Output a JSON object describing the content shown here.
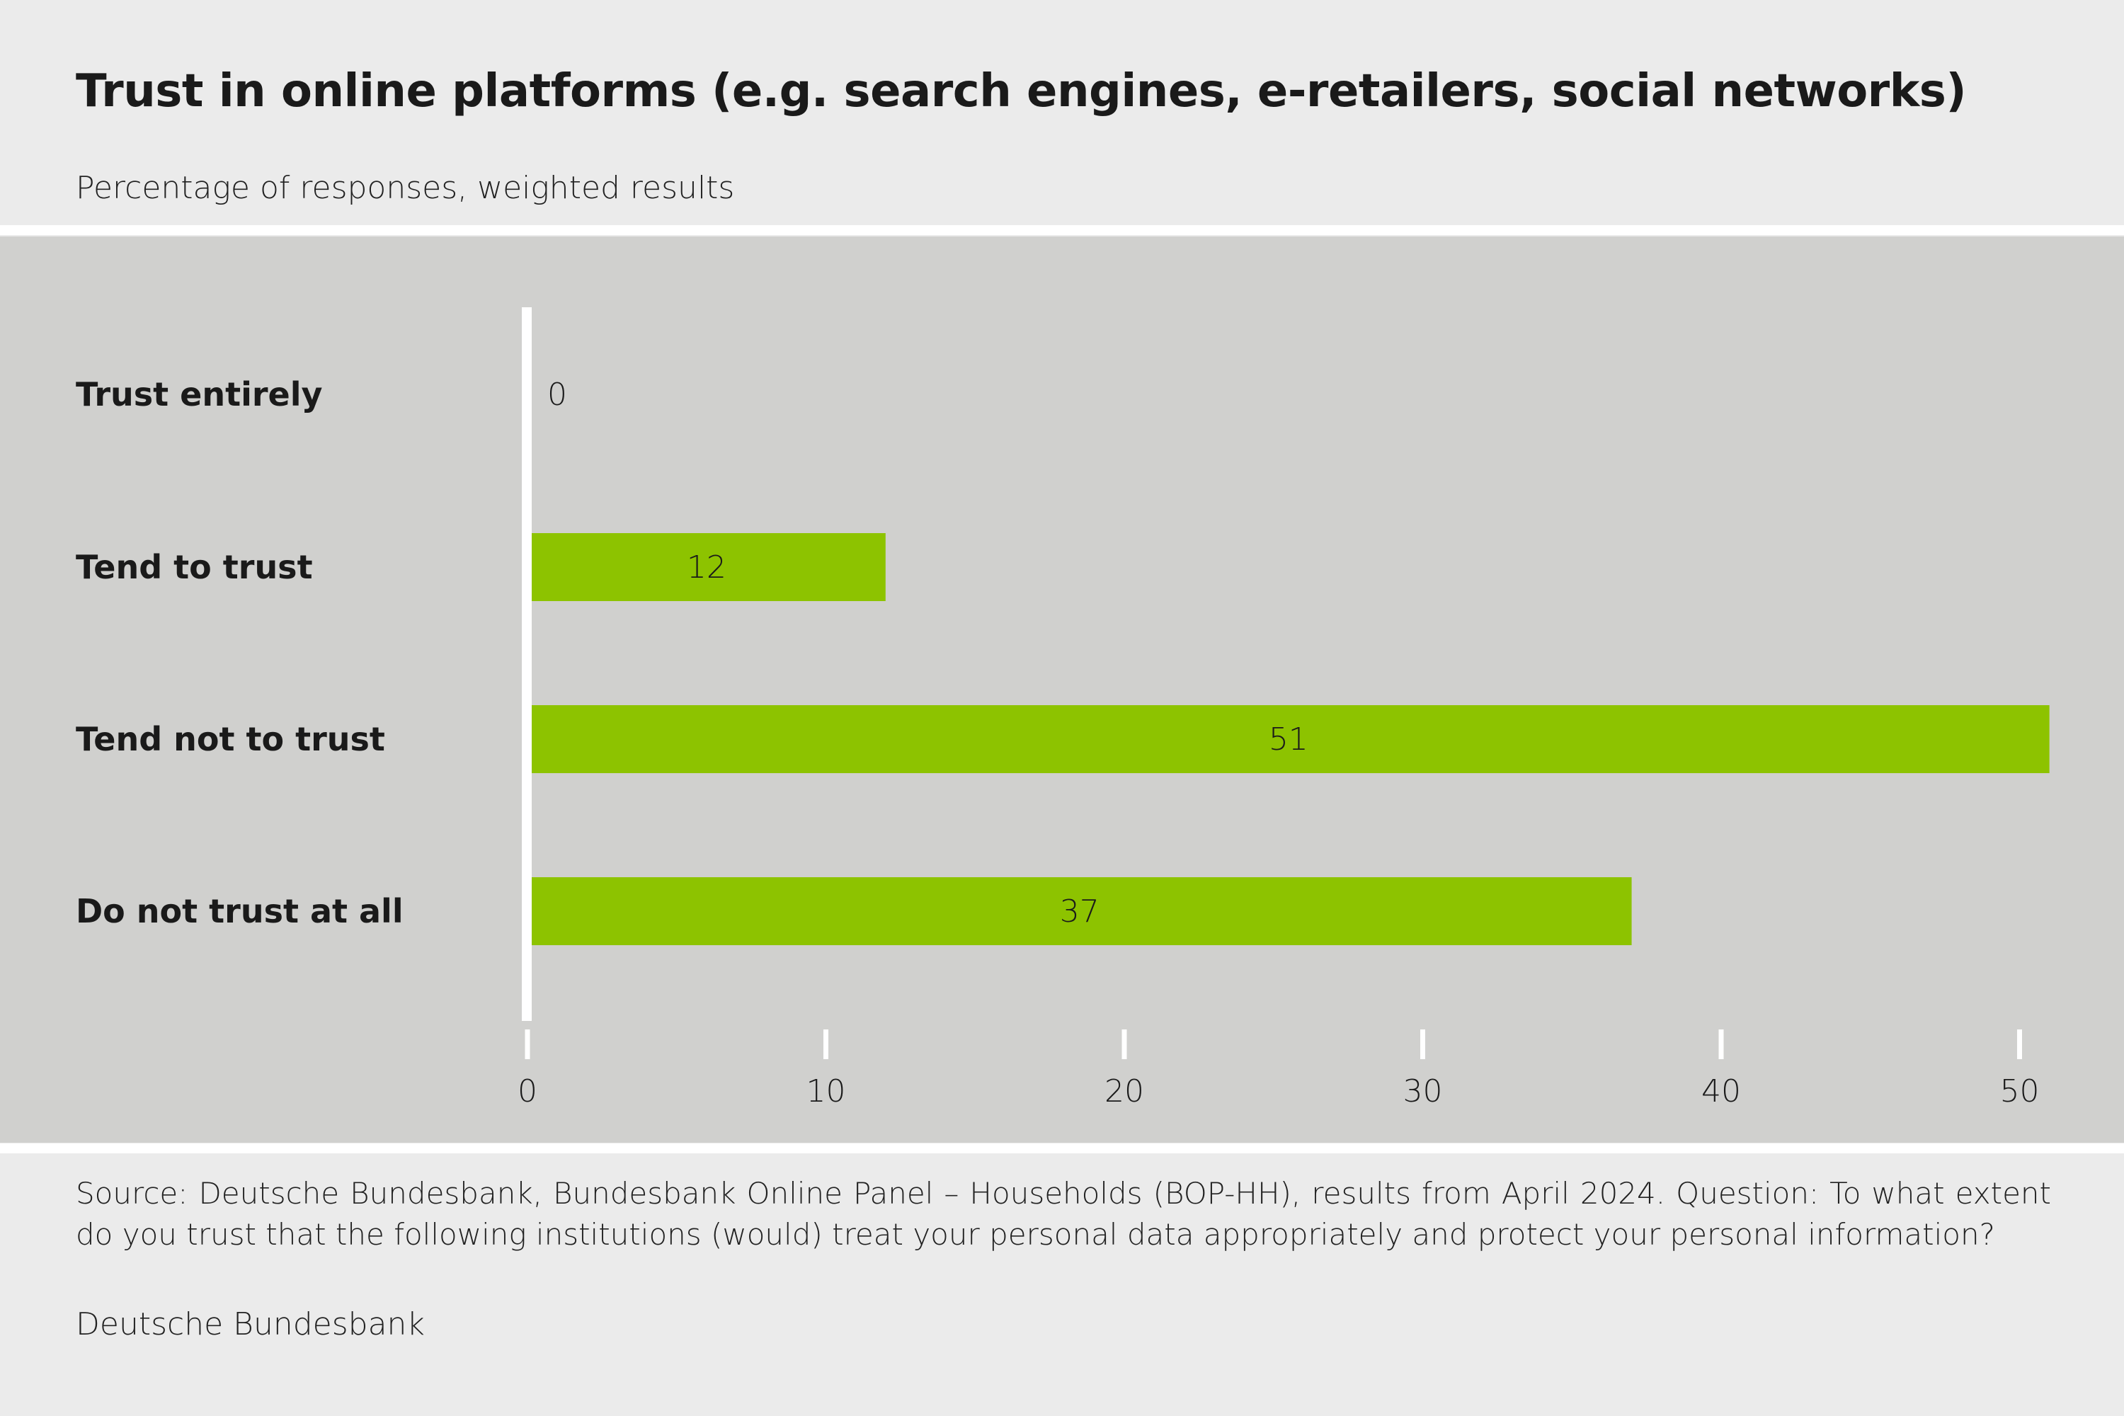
{
  "title": "Trust in online platforms (e.g. search engines, e-retailers, social networks)",
  "subtitle": "Percentage of responses, weighted results",
  "footer": {
    "source": "Source: Deutsche Bundesbank, Bundesbank Online Panel – Households (BOP-HH), results from April 2024. Question: To what extent do you trust that the following institutions (would) treat your personal data appropriately and protect your personal information?",
    "credit": "Deutsche Bundesbank"
  },
  "colors": {
    "bar": "#8dc300",
    "plot_background": "#d0d0ce",
    "page_background": "#ebebeb",
    "axis": "#ffffff"
  },
  "chart_data": {
    "type": "bar",
    "orientation": "horizontal",
    "title": "Trust in online platforms (e.g. search engines, e-retailers, social networks)",
    "subtitle": "Percentage of responses, weighted results",
    "categories": [
      "Trust entirely",
      "Tend to trust",
      "Tend not to trust",
      "Do not trust at all"
    ],
    "values": [
      0,
      12,
      51,
      37
    ],
    "value_labels": [
      "0",
      "12",
      "51",
      "37"
    ],
    "xlim": [
      0,
      51
    ],
    "xticks": [
      0,
      10,
      20,
      30,
      40,
      50
    ],
    "xtick_labels": [
      "0",
      "10",
      "20",
      "30",
      "40",
      "50"
    ],
    "xlabel": "",
    "ylabel": "",
    "grid": false,
    "legend": "none"
  }
}
